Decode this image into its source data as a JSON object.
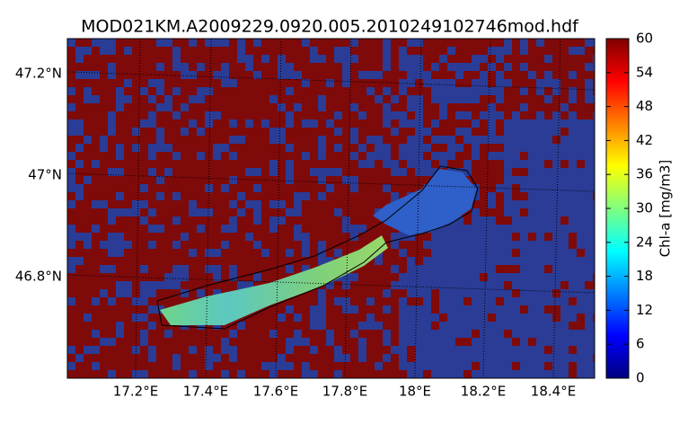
{
  "title": "MOD021KM.A2009229.0920.005.2010249102746mod.hdf",
  "latitude_labels": [
    "47.2°N",
    "47°N",
    "46.8°N"
  ],
  "longitude_labels": [
    "17.2°E",
    "17.4°E",
    "17.6°E",
    "17.8°E",
    "18°E",
    "18.2°E",
    "18.4°E"
  ],
  "colorbar": {
    "label": "Chl-a [mg/m3]",
    "lim": [
      0,
      60
    ],
    "ticks": [
      0,
      6,
      12,
      18,
      24,
      30,
      36,
      42,
      48,
      54,
      60
    ]
  }
}
